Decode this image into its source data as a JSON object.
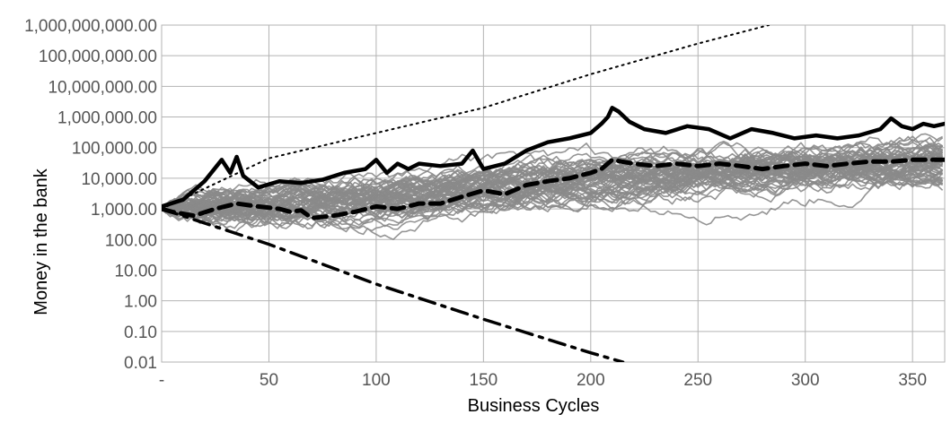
{
  "chart_data": {
    "type": "line",
    "title": "",
    "xlabel": "Business Cycles",
    "ylabel": "Money in the bank",
    "y_scale": "log",
    "ylim": [
      0.01,
      1000000000
    ],
    "xlim": [
      0,
      365
    ],
    "grid": true,
    "legend": "none",
    "x_tick_labels": [
      "-",
      "50",
      "100",
      "150",
      "200",
      "250",
      "300",
      "350"
    ],
    "x_tick_values": [
      0,
      50,
      100,
      150,
      200,
      250,
      300,
      350
    ],
    "y_tick_labels": [
      "1,000,000,000.00",
      "100,000,000.00",
      "10,000,000.00",
      "1,000,000.00",
      "100,000.00",
      "10,000.00",
      "1,000.00",
      "100.00",
      "10.00",
      "1.00",
      "0.10",
      "0.01"
    ],
    "y_tick_values": [
      1000000000,
      100000000,
      10000000,
      1000000,
      100000,
      10000,
      1000,
      100,
      10,
      1,
      0.1,
      0.01
    ],
    "background_path_count": 60,
    "series": [
      {
        "style": "dotted",
        "color": "#000000",
        "x": [
          0,
          50,
          100,
          150,
          200,
          250,
          283
        ],
        "values": [
          1000,
          45000,
          300000,
          2000000,
          25000000,
          250000000,
          1000000000
        ]
      },
      {
        "style": "solid-thick",
        "color": "#000000",
        "x": [
          0,
          10,
          20,
          28,
          32,
          35,
          38,
          45,
          55,
          65,
          75,
          85,
          95,
          100,
          105,
          110,
          115,
          120,
          130,
          140,
          145,
          150,
          160,
          170,
          180,
          190,
          200,
          205,
          208,
          210,
          213,
          218,
          225,
          235,
          245,
          255,
          265,
          275,
          285,
          295,
          305,
          315,
          325,
          335,
          340,
          345,
          350,
          355,
          360,
          365
        ],
        "values": [
          1200,
          2000,
          8000,
          40000,
          15000,
          50000,
          12000,
          5000,
          8000,
          7000,
          9000,
          15000,
          20000,
          40000,
          15000,
          30000,
          20000,
          30000,
          25000,
          30000,
          80000,
          20000,
          30000,
          80000,
          150000,
          200000,
          300000,
          600000,
          1000000,
          2000000,
          1500000,
          700000,
          400000,
          300000,
          500000,
          400000,
          200000,
          400000,
          300000,
          200000,
          250000,
          200000,
          250000,
          400000,
          900000,
          500000,
          400000,
          600000,
          500000,
          600000
        ]
      },
      {
        "style": "dashed-thick",
        "color": "#000000",
        "x": [
          0,
          5,
          15,
          25,
          35,
          45,
          55,
          60,
          65,
          70,
          80,
          90,
          100,
          110,
          120,
          130,
          140,
          150,
          160,
          170,
          180,
          190,
          200,
          205,
          210,
          220,
          230,
          240,
          250,
          260,
          270,
          280,
          290,
          300,
          310,
          320,
          330,
          340,
          350,
          360,
          365
        ],
        "values": [
          1000,
          800,
          600,
          1000,
          1500,
          1200,
          1000,
          800,
          900,
          500,
          600,
          800,
          1200,
          1000,
          1500,
          1500,
          2500,
          4000,
          3000,
          6000,
          8000,
          10000,
          15000,
          20000,
          40000,
          30000,
          25000,
          30000,
          25000,
          30000,
          25000,
          20000,
          25000,
          30000,
          25000,
          30000,
          35000,
          35000,
          40000,
          40000,
          40000
        ]
      },
      {
        "style": "dash-dot",
        "color": "#000000",
        "x": [
          0,
          50,
          100,
          150,
          200,
          215
        ],
        "values": [
          1000,
          70,
          3.5,
          0.25,
          0.02,
          0.01
        ]
      }
    ]
  }
}
